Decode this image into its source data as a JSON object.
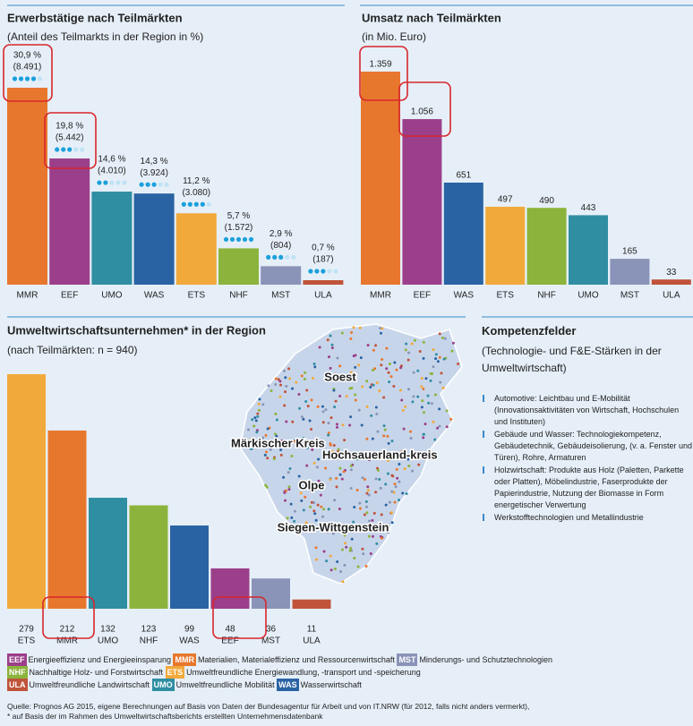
{
  "chart_data": [
    {
      "type": "bar",
      "title": "Erwerbstätige nach Teilmärkten",
      "subtitle": "(Anteil des Teilmarkts in der Region in %)",
      "categories": [
        "MMR",
        "EEF",
        "UMO",
        "WAS",
        "ETS",
        "NHF",
        "MST",
        "ULA"
      ],
      "values": [
        30.9,
        19.8,
        14.6,
        14.3,
        11.2,
        5.7,
        2.9,
        0.7
      ],
      "value_labels": [
        "30,9 %",
        "19,8 %",
        "14,6 %",
        "14,3 %",
        "11,2 %",
        "5,7 %",
        "2,9 %",
        "0,7 %"
      ],
      "counts": [
        8491,
        5442,
        4010,
        3924,
        3080,
        1572,
        804,
        187
      ],
      "count_labels": [
        "(8.491)",
        "(5.442)",
        "(4.010)",
        "(3.924)",
        "(3.080)",
        "(1.572)",
        "(804)",
        "(187)"
      ],
      "dots": [
        4,
        3,
        2,
        3,
        4,
        5,
        3,
        3
      ],
      "colors": [
        "#e8772e",
        "#9b3f8a",
        "#2f8ea2",
        "#2a63a3",
        "#f2a93b",
        "#8cb43c",
        "#8a94b8",
        "#c0533a"
      ]
    },
    {
      "type": "bar",
      "title": "Umsatz nach Teilmärkten",
      "subtitle": "(in Mio. Euro)",
      "categories": [
        "MMR",
        "EEF",
        "WAS",
        "ETS",
        "NHF",
        "UMO",
        "MST",
        "ULA"
      ],
      "values": [
        1359,
        1056,
        651,
        497,
        490,
        443,
        165,
        33
      ],
      "value_labels": [
        "1.359",
        "1.056",
        "651",
        "497",
        "490",
        "443",
        "165",
        "33"
      ],
      "colors": [
        "#e8772e",
        "#9b3f8a",
        "#2a63a3",
        "#f2a93b",
        "#8cb43c",
        "#2f8ea2",
        "#8a94b8",
        "#c0533a"
      ]
    },
    {
      "type": "bar",
      "title": "Umweltwirtschaftsunternehmen* in der Region",
      "subtitle": "(nach Teilmärkten: n = 940)",
      "categories": [
        "ETS",
        "MMR",
        "UMO",
        "NHF",
        "WAS",
        "EEF",
        "MST",
        "ULA"
      ],
      "values": [
        279,
        212,
        132,
        123,
        99,
        48,
        36,
        11
      ],
      "colors": [
        "#f2a93b",
        "#e8772e",
        "#2f8ea2",
        "#8cb43c",
        "#2a63a3",
        "#9b3f8a",
        "#8a94b8",
        "#c0533a"
      ]
    }
  ],
  "map": {
    "regions": [
      "Soest",
      "Märkischer Kreis",
      "Hochsauerland-kreis",
      "Olpe",
      "Siegen-Wittgenstein"
    ]
  },
  "kompetenz": {
    "title": "Kompetenzfelder",
    "subtitle": "(Technologie- und F&E-Stärken in der Umweltwirtschaft)",
    "items": [
      "Automotive: Leichtbau und E-Mobilität (Innovationsaktivitäten von Wirtschaft, Hochschulen und Instituten)",
      "Gebäude und Wasser: Technologiekompetenz, Gebäudetechnik, Gebäudeisolierung, (v. a. Fenster und Türen), Rohre, Armaturen",
      "Holzwirtschaft: Produkte aus Holz (Paletten, Parkette oder Platten), Möbelindustrie, Faserprodukte der Papierindustrie, Nutzung der Biomasse in Form energetischer Verwertung",
      "Werkstofftechnologien und Metallindustrie"
    ]
  },
  "legend": [
    [
      {
        "code": "EEF",
        "text": "Energieeffizienz und Energieeinsparung",
        "color": "#9b3f8a"
      },
      {
        "code": "MMR",
        "text": "Materialien, Materialeffizienz und Ressourcenwirtschaft",
        "color": "#e8772e"
      },
      {
        "code": "MST",
        "text": "Minderungs- und Schutztechnologien",
        "color": "#8a94b8"
      }
    ],
    [
      {
        "code": "NHF",
        "text": "Nachhaltige Holz- und Forstwirtschaft",
        "color": "#8cb43c"
      },
      {
        "code": "ETS",
        "text": "Umweltfreundliche Energiewandlung, -transport und -speicherung",
        "color": "#f2a93b"
      }
    ],
    [
      {
        "code": "ULA",
        "text": "Umweltfreundliche Landwirtschaft",
        "color": "#c0533a"
      },
      {
        "code": "UMO",
        "text": "Umweltfreundliche Mobilität",
        "color": "#2f8ea2"
      },
      {
        "code": "WAS",
        "text": "Wasserwirtschaft",
        "color": "#2a63a3"
      }
    ]
  ],
  "source": [
    "Quelle: Prognos AG 2015, eigene Berechnungen auf Basis von Daten der Bundesagentur für Arbeit und von IT.NRW (für 2012, falls nicht anders vermerkt),",
    "* auf Basis der im Rahmen des Umweltwirtschaftsberichts erstellten Unternehmensdatenbank"
  ]
}
